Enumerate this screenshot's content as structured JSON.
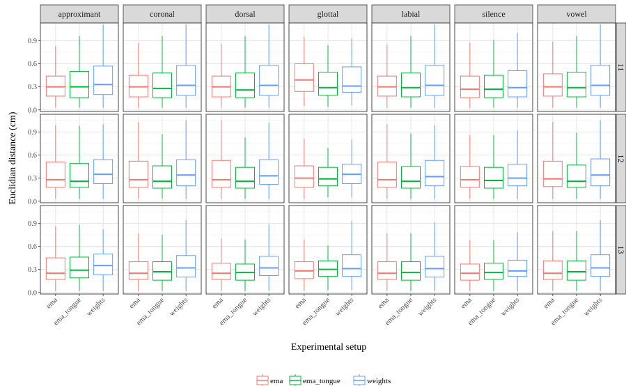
{
  "chart_data": {
    "type": "boxplot",
    "title": "",
    "xlabel": "Experimental setup",
    "ylabel": "Euclidian distance (cm)",
    "ylim": [
      -0.02,
      1.13
    ],
    "y_ticks": [
      0.0,
      0.3,
      0.6,
      0.9
    ],
    "y_tick_labels": [
      "0.0",
      "0.3",
      "0.6",
      "0.9"
    ],
    "grid": true,
    "legend_position": "bottom",
    "categories": [
      "ema",
      "ema_tongue",
      "weights"
    ],
    "series": [
      {
        "name": "ema",
        "color": "#F8766D"
      },
      {
        "name": "ema_tongue",
        "color": "#00BA38"
      },
      {
        "name": "weights",
        "color": "#619CFF"
      }
    ],
    "columns": [
      "approximant",
      "coronal",
      "dorsal",
      "glottal",
      "labial",
      "silence",
      "vowel"
    ],
    "rows": [
      "l1",
      "l2",
      "l3"
    ],
    "row_labels": [
      "11",
      "12",
      "13"
    ],
    "panels": [
      [
        [
          [
            0.03,
            0.18,
            0.3,
            0.44,
            0.83
          ],
          [
            0.03,
            0.16,
            0.3,
            0.5,
            0.96
          ],
          [
            0.03,
            0.2,
            0.33,
            0.57,
            1.11
          ]
        ],
        [
          [
            0.03,
            0.17,
            0.3,
            0.45,
            0.87
          ],
          [
            0.03,
            0.16,
            0.28,
            0.48,
            0.96
          ],
          [
            0.03,
            0.19,
            0.32,
            0.58,
            1.11
          ]
        ],
        [
          [
            0.03,
            0.17,
            0.3,
            0.44,
            0.86
          ],
          [
            0.03,
            0.16,
            0.26,
            0.48,
            0.96
          ],
          [
            0.03,
            0.19,
            0.32,
            0.58,
            1.11
          ]
        ],
        [
          [
            0.05,
            0.24,
            0.39,
            0.6,
            0.95
          ],
          [
            0.04,
            0.19,
            0.29,
            0.49,
            0.84
          ],
          [
            0.06,
            0.23,
            0.31,
            0.56,
            0.93
          ]
        ],
        [
          [
            0.03,
            0.18,
            0.3,
            0.44,
            0.85
          ],
          [
            0.03,
            0.17,
            0.29,
            0.48,
            0.96
          ],
          [
            0.03,
            0.19,
            0.32,
            0.58,
            1.11
          ]
        ],
        [
          [
            0.03,
            0.16,
            0.27,
            0.44,
            0.87
          ],
          [
            0.03,
            0.16,
            0.27,
            0.45,
            0.91
          ],
          [
            0.03,
            0.17,
            0.29,
            0.51,
            1.0
          ]
        ],
        [
          [
            0.03,
            0.18,
            0.3,
            0.47,
            0.89
          ],
          [
            0.03,
            0.17,
            0.29,
            0.49,
            0.96
          ],
          [
            0.03,
            0.19,
            0.32,
            0.58,
            1.11
          ]
        ]
      ],
      [
        [
          [
            0.03,
            0.18,
            0.28,
            0.51,
            0.99
          ],
          [
            0.03,
            0.18,
            0.26,
            0.49,
            0.98
          ],
          [
            0.03,
            0.23,
            0.35,
            0.54,
            1.0
          ]
        ],
        [
          [
            0.03,
            0.18,
            0.28,
            0.52,
            1.03
          ],
          [
            0.03,
            0.17,
            0.26,
            0.46,
            0.87
          ],
          [
            0.03,
            0.2,
            0.34,
            0.54,
            1.05
          ]
        ],
        [
          [
            0.03,
            0.18,
            0.28,
            0.53,
            1.05
          ],
          [
            0.03,
            0.17,
            0.26,
            0.44,
            0.83
          ],
          [
            0.03,
            0.22,
            0.33,
            0.54,
            1.02
          ]
        ],
        [
          [
            0.03,
            0.18,
            0.3,
            0.46,
            0.81
          ],
          [
            0.05,
            0.2,
            0.29,
            0.44,
            0.69
          ],
          [
            0.05,
            0.23,
            0.35,
            0.48,
            0.8
          ]
        ],
        [
          [
            0.03,
            0.18,
            0.28,
            0.51,
            1.0
          ],
          [
            0.03,
            0.17,
            0.26,
            0.45,
            0.88
          ],
          [
            0.03,
            0.2,
            0.32,
            0.53,
            0.99
          ]
        ],
        [
          [
            0.03,
            0.18,
            0.28,
            0.45,
            0.86
          ],
          [
            0.03,
            0.17,
            0.27,
            0.44,
            0.86
          ],
          [
            0.03,
            0.2,
            0.3,
            0.48,
            0.92
          ]
        ],
        [
          [
            0.03,
            0.19,
            0.29,
            0.52,
            1.03
          ],
          [
            0.03,
            0.18,
            0.26,
            0.47,
            0.89
          ],
          [
            0.03,
            0.2,
            0.34,
            0.55,
            1.05
          ]
        ]
      ],
      [
        [
          [
            0.02,
            0.17,
            0.25,
            0.45,
            0.86
          ],
          [
            0.02,
            0.19,
            0.29,
            0.46,
            0.88
          ],
          [
            0.02,
            0.23,
            0.35,
            0.5,
            0.82
          ]
        ],
        [
          [
            0.02,
            0.17,
            0.25,
            0.4,
            0.77
          ],
          [
            0.02,
            0.16,
            0.27,
            0.4,
            0.75
          ],
          [
            0.02,
            0.2,
            0.32,
            0.48,
            0.94
          ]
        ],
        [
          [
            0.02,
            0.17,
            0.25,
            0.38,
            0.7
          ],
          [
            0.02,
            0.16,
            0.26,
            0.37,
            0.69
          ],
          [
            0.02,
            0.22,
            0.32,
            0.47,
            0.88
          ]
        ],
        [
          [
            0.02,
            0.18,
            0.28,
            0.4,
            0.69
          ],
          [
            0.03,
            0.21,
            0.3,
            0.41,
            0.61
          ],
          [
            0.03,
            0.21,
            0.31,
            0.49,
            0.93
          ]
        ],
        [
          [
            0.02,
            0.17,
            0.25,
            0.4,
            0.77
          ],
          [
            0.02,
            0.16,
            0.26,
            0.4,
            0.77
          ],
          [
            0.02,
            0.2,
            0.31,
            0.47,
            0.91
          ]
        ],
        [
          [
            0.02,
            0.16,
            0.25,
            0.37,
            0.68
          ],
          [
            0.02,
            0.17,
            0.26,
            0.38,
            0.68
          ],
          [
            0.02,
            0.21,
            0.28,
            0.42,
            0.78
          ]
        ],
        [
          [
            0.02,
            0.17,
            0.25,
            0.41,
            0.8
          ],
          [
            0.02,
            0.16,
            0.27,
            0.41,
            0.8
          ],
          [
            0.02,
            0.21,
            0.32,
            0.49,
            0.94
          ]
        ]
      ]
    ]
  }
}
